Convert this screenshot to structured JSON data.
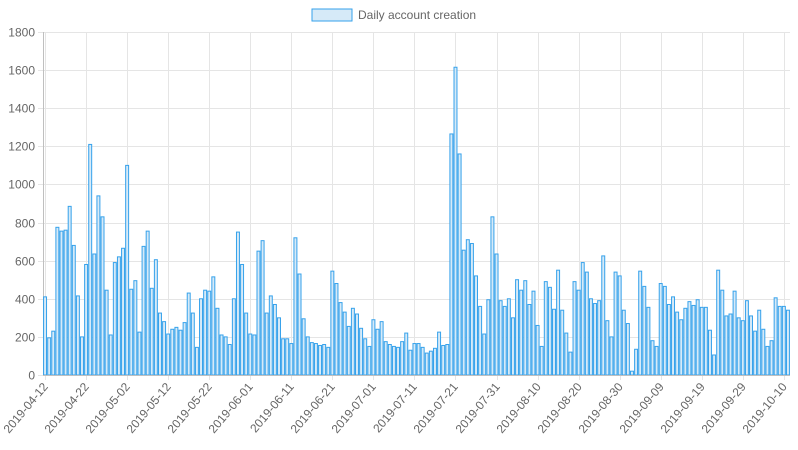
{
  "chart_data": {
    "type": "bar",
    "title": "",
    "xlabel": "",
    "ylabel": "",
    "legend": {
      "position": "top",
      "entries": [
        "Daily account creation"
      ]
    },
    "grid": true,
    "colors": {
      "bar_fill": "#d6eaf8",
      "bar_stroke": "#36a2eb",
      "grid": "#e5e5e5",
      "tick_text": "#666666"
    },
    "ylim": [
      0,
      1800
    ],
    "y_ticks": [
      0,
      200,
      400,
      600,
      800,
      1000,
      1200,
      1400,
      1600,
      1800
    ],
    "x_tick_labels": [
      "2019-04-12",
      "2019-04-22",
      "2019-05-02",
      "2019-05-12",
      "2019-05-22",
      "2019-06-01",
      "2019-06-11",
      "2019-06-21",
      "2019-07-01",
      "2019-07-11",
      "2019-07-21",
      "2019-07-31",
      "2019-08-10",
      "2019-08-20",
      "2019-08-30",
      "2019-09-09",
      "2019-09-19",
      "2019-09-29",
      "2019-10-10"
    ],
    "start_date": "2019-04-12",
    "series": [
      {
        "name": "Daily account creation",
        "values": [
          410,
          195,
          230,
          775,
          755,
          760,
          885,
          680,
          415,
          200,
          580,
          1210,
          635,
          940,
          830,
          445,
          210,
          590,
          620,
          665,
          1100,
          450,
          495,
          225,
          675,
          755,
          455,
          605,
          325,
          280,
          215,
          240,
          250,
          235,
          275,
          430,
          325,
          145,
          400,
          445,
          440,
          515,
          350,
          210,
          200,
          160,
          400,
          750,
          580,
          325,
          215,
          210,
          650,
          705,
          325,
          415,
          370,
          300,
          190,
          190,
          165,
          720,
          530,
          295,
          200,
          170,
          165,
          155,
          160,
          145,
          545,
          480,
          380,
          330,
          255,
          350,
          320,
          245,
          190,
          150,
          290,
          240,
          280,
          175,
          160,
          150,
          145,
          175,
          220,
          130,
          165,
          165,
          145,
          115,
          125,
          140,
          225,
          155,
          160,
          1265,
          1615,
          1160,
          655,
          710,
          690,
          520,
          360,
          215,
          395,
          830,
          635,
          390,
          360,
          400,
          300,
          500,
          445,
          495,
          370,
          440,
          260,
          150,
          490,
          460,
          345,
          550,
          340,
          220,
          120,
          490,
          445,
          590,
          540,
          400,
          375,
          390,
          625,
          285,
          200,
          540,
          520,
          340,
          270,
          20,
          135,
          545,
          465,
          355,
          180,
          150,
          480,
          465,
          370,
          410,
          330,
          290,
          350,
          385,
          365,
          395,
          355,
          355,
          235,
          105,
          550,
          445,
          310,
          320,
          440,
          300,
          285,
          390,
          310,
          230,
          340,
          240,
          150,
          180,
          405,
          360,
          360,
          340
        ]
      }
    ]
  }
}
